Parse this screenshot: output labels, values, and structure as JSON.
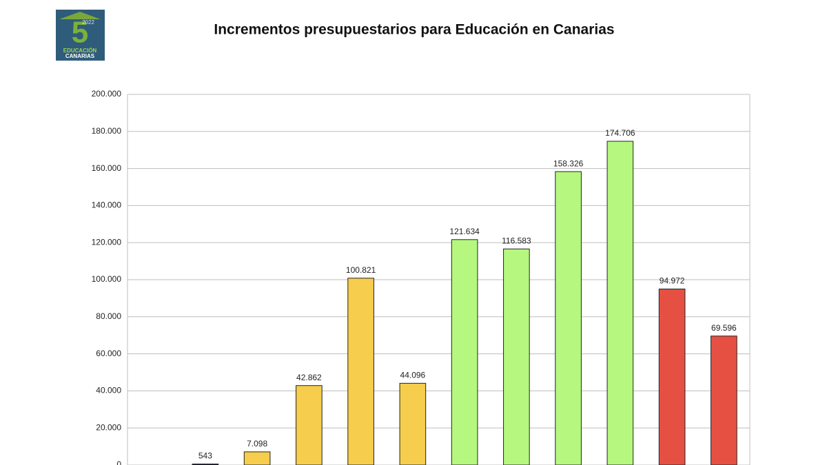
{
  "logo": {
    "number": "5",
    "year": "2022",
    "line1": "EDUCACIÓN",
    "line2": "CANARIAS"
  },
  "chart_data": {
    "type": "bar",
    "title": "Incrementos presupuestarios para Educación en Canarias",
    "categories": [
      null,
      null,
      null,
      null,
      null,
      null,
      null,
      null,
      null,
      null,
      null,
      null
    ],
    "values": [
      null,
      543,
      7098,
      42862,
      100821,
      44096,
      121634,
      116583,
      158326,
      174706,
      94972,
      69596
    ],
    "value_labels": [
      null,
      "543",
      "7.098",
      "42.862",
      "100.821",
      "44.096",
      "121.634",
      "116.583",
      "158.326",
      "174.706",
      "94.972",
      "69.596"
    ],
    "colors": [
      null,
      "#1c1c4a",
      "#f6cd4c",
      "#f6cd4c",
      "#f6cd4c",
      "#f6cd4c",
      "#b5f77f",
      "#b5f77f",
      "#b5f77f",
      "#b5f77f",
      "#e65043",
      "#e65043"
    ],
    "ylim": [
      0,
      200000
    ],
    "yticks": [
      0,
      {
        "value": 20000,
        "label": "20.000"
      },
      {
        "value": 40000,
        "label": "40.000"
      },
      {
        "value": 60000,
        "label": "60.000"
      },
      {
        "value": 80000,
        "label": "80.000"
      },
      {
        "value": 100000,
        "label": "100.000"
      },
      {
        "value": 120000,
        "label": "120.000"
      },
      {
        "value": 140000,
        "label": "140.000"
      },
      {
        "value": 160000,
        "label": "160.000"
      },
      {
        "value": 180000,
        "label": "180.000"
      },
      {
        "value": 200000,
        "label": "200.000"
      }
    ],
    "grid": true
  }
}
